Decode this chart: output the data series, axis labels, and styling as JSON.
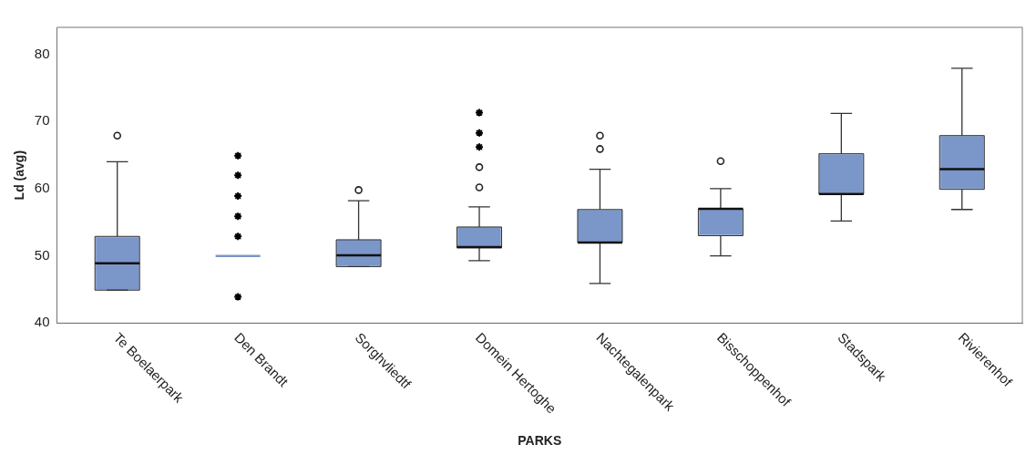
{
  "chart_data": {
    "type": "box",
    "xlabel": "PARKS",
    "ylabel": "Ld (avg)",
    "categories": [
      "Te Boelaerpark",
      "Den Brandt",
      "Sorghvliedtf",
      "Domein Hertoghe",
      "Nachtegalenpark",
      "Bisschoppenhof",
      "Stadspark",
      "Rivierenhof"
    ],
    "ylim": [
      40,
      84
    ],
    "yticks": [
      40,
      50,
      60,
      70,
      80
    ],
    "grid": false,
    "legend": false,
    "series": [
      {
        "type": "box",
        "color": "#7b96c9",
        "boxes": [
          {
            "low": 44.9,
            "q1": 44.9,
            "median": 48.9,
            "q3": 52.9,
            "high": 64.0,
            "outliers": [
              67.9
            ]
          },
          {
            "low": 50.0,
            "q1": 50.0,
            "median": 50.0,
            "q3": 50.0,
            "high": 50.0
          },
          {
            "low": 48.4,
            "q1": 48.4,
            "median": 50.1,
            "q3": 52.4,
            "high": 58.2,
            "outliers": [
              59.8
            ]
          },
          {
            "low": 49.3,
            "q1": 51.2,
            "median": 51.3,
            "q3": 54.3,
            "high": 57.3,
            "outliers": [
              60.2,
              63.2
            ]
          },
          {
            "low": 45.9,
            "q1": 52.0,
            "median": 52.0,
            "q3": 56.9,
            "high": 62.9,
            "outliers": [
              65.9,
              67.9
            ]
          },
          {
            "low": 50.0,
            "q1": 53.0,
            "median": 57.0,
            "q3": 57.0,
            "high": 60.0,
            "outliers": [
              64.1
            ]
          },
          {
            "low": 55.2,
            "q1": 59.2,
            "median": 59.2,
            "q3": 65.2,
            "high": 71.2
          },
          {
            "low": 56.9,
            "q1": 59.9,
            "median": 62.9,
            "q3": 67.9,
            "high": 77.9
          }
        ]
      },
      {
        "type": "scatter",
        "marker": "cross",
        "color": "#000000",
        "x": [
          "Den Brandt",
          "Den Brandt",
          "Den Brandt",
          "Den Brandt",
          "Den Brandt",
          "Den Brandt",
          "Domein Hertoghe",
          "Domein Hertoghe",
          "Domein Hertoghe"
        ],
        "values": [
          64.9,
          62.0,
          58.9,
          55.9,
          52.9,
          43.9,
          66.2,
          68.3,
          71.3
        ]
      }
    ]
  }
}
